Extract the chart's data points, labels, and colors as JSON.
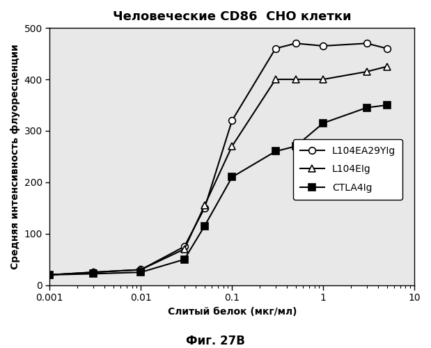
{
  "title": "Человеческие CD86  СНО клетки",
  "xlabel": "Слитый белок (мкг/мл)",
  "ylabel": "Средняя интенсивность флуоресценции",
  "caption": "Фиг. 27B",
  "xlim": [
    0.001,
    10
  ],
  "ylim": [
    0,
    500
  ],
  "yticks": [
    0,
    100,
    200,
    300,
    400,
    500
  ],
  "series": [
    {
      "label": "L104EA29YIg",
      "marker": "o",
      "markerfacecolor": "white",
      "color": "black",
      "x": [
        0.001,
        0.003,
        0.01,
        0.03,
        0.05,
        0.1,
        0.3,
        0.5,
        1.0,
        3.0,
        5.0
      ],
      "y": [
        20,
        25,
        30,
        75,
        150,
        320,
        460,
        470,
        465,
        470,
        460
      ]
    },
    {
      "label": "L104EIg",
      "marker": "^",
      "markerfacecolor": "white",
      "color": "black",
      "x": [
        0.001,
        0.003,
        0.01,
        0.03,
        0.05,
        0.1,
        0.3,
        0.5,
        1.0,
        3.0,
        5.0
      ],
      "y": [
        20,
        25,
        30,
        70,
        155,
        270,
        400,
        400,
        400,
        415,
        425
      ]
    },
    {
      "label": "CTLA4Ig",
      "marker": "s",
      "markerfacecolor": "black",
      "color": "black",
      "x": [
        0.001,
        0.003,
        0.01,
        0.03,
        0.05,
        0.1,
        0.3,
        0.5,
        1.0,
        3.0,
        5.0
      ],
      "y": [
        20,
        22,
        25,
        50,
        115,
        210,
        260,
        270,
        315,
        345,
        350
      ]
    }
  ],
  "background_color": "#ffffff",
  "plot_bg_color": "#e8e8e8",
  "title_fontsize": 13,
  "label_fontsize": 10,
  "tick_fontsize": 10,
  "caption_fontsize": 12,
  "legend_fontsize": 10
}
